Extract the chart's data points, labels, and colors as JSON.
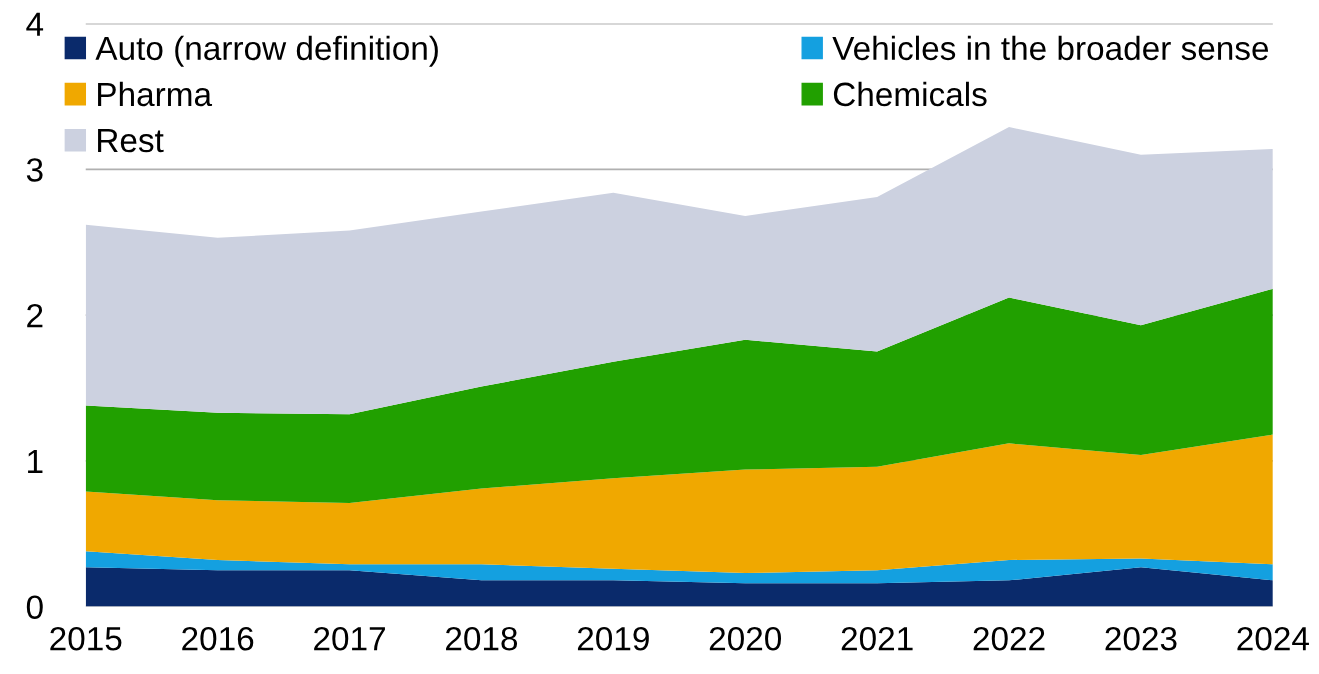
{
  "chart_data": {
    "type": "area",
    "stacked": true,
    "x": [
      2015,
      2016,
      2017,
      2018,
      2019,
      2020,
      2021,
      2022,
      2023,
      2024
    ],
    "xlim": [
      2015,
      2024
    ],
    "xticks": [
      2015,
      2016,
      2017,
      2018,
      2019,
      2020,
      2021,
      2022,
      2023,
      2024
    ],
    "ylim": [
      0,
      4
    ],
    "yticks": [
      0,
      1,
      2,
      3,
      4
    ],
    "grid": "y",
    "legend": "top",
    "series": [
      {
        "name": "Auto (narrow definition)",
        "color": "#0a2a6b",
        "values": [
          0.27,
          0.25,
          0.25,
          0.18,
          0.18,
          0.16,
          0.16,
          0.18,
          0.27,
          0.18
        ]
      },
      {
        "name": "Vehicles in the broader sense",
        "color": "#14a0e0",
        "values": [
          0.11,
          0.07,
          0.04,
          0.11,
          0.08,
          0.07,
          0.09,
          0.14,
          0.06,
          0.11
        ]
      },
      {
        "name": "Pharma",
        "color": "#f0a800",
        "values": [
          0.41,
          0.41,
          0.42,
          0.52,
          0.62,
          0.71,
          0.71,
          0.8,
          0.71,
          0.89
        ]
      },
      {
        "name": "Chemicals",
        "color": "#21a000",
        "values": [
          0.59,
          0.6,
          0.61,
          0.7,
          0.8,
          0.89,
          0.79,
          1.0,
          0.89,
          1.0
        ]
      },
      {
        "name": "Rest",
        "color": "#ccd1e0",
        "values": [
          1.24,
          1.2,
          1.26,
          1.2,
          1.16,
          0.85,
          1.06,
          1.17,
          1.17,
          0.96
        ]
      }
    ]
  }
}
